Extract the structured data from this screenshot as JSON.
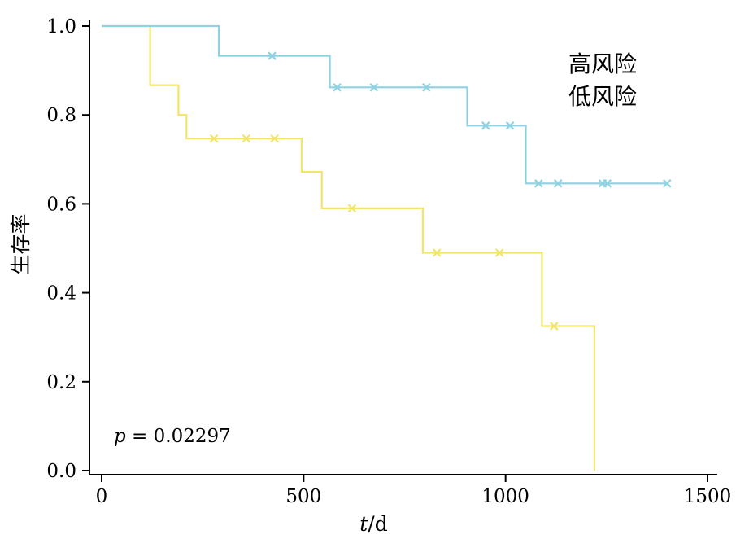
{
  "chart_data": {
    "type": "line",
    "variant": "kaplan-meier-step",
    "title": "",
    "xlabel": "t/d",
    "xlabel_italic_part": "t",
    "xlabel_regular_part": "/d",
    "ylabel": "生存率",
    "xlim": [
      0,
      1500
    ],
    "ylim": [
      0,
      1
    ],
    "x_tick_values": [
      0,
      500,
      1000,
      1500
    ],
    "x_tick_labels": [
      "0",
      "500",
      "1000",
      "1500"
    ],
    "y_tick_values": [
      0,
      0.2,
      0.4,
      0.6,
      0.8,
      1.0
    ],
    "y_tick_labels": [
      "0.0",
      "0.2",
      "0.4",
      "0.6",
      "0.8",
      "1.0"
    ],
    "grid": false,
    "legend_position": "top-right",
    "annotation": {
      "italic": "p",
      "rest": " = 0.02297",
      "full": "p = 0.02297"
    },
    "series": [
      {
        "name": "高风险",
        "color": "#F1E56B",
        "label_color": "#F0D43A",
        "steps": [
          [
            0,
            1.0
          ],
          [
            120,
            0.867
          ],
          [
            190,
            0.8
          ],
          [
            210,
            0.747
          ],
          [
            495,
            0.672
          ],
          [
            545,
            0.59
          ],
          [
            795,
            0.49
          ],
          [
            1090,
            0.325
          ],
          [
            1220,
            0.0
          ]
        ],
        "end": 1220,
        "censor": [
          [
            278,
            0.747
          ],
          [
            358,
            0.747
          ],
          [
            428,
            0.747
          ],
          [
            620,
            0.59
          ],
          [
            830,
            0.49
          ],
          [
            985,
            0.49
          ],
          [
            1120,
            0.325
          ]
        ]
      },
      {
        "name": "低风险",
        "color": "#8FD2E2",
        "label_color": "#74CCDF",
        "steps": [
          [
            0,
            1.0
          ],
          [
            290,
            0.933
          ],
          [
            565,
            0.862
          ],
          [
            905,
            0.776
          ],
          [
            1050,
            0.646
          ]
        ],
        "end": 1400,
        "censor": [
          [
            422,
            0.933
          ],
          [
            583,
            0.862
          ],
          [
            674,
            0.862
          ],
          [
            804,
            0.862
          ],
          [
            951,
            0.776
          ],
          [
            1011,
            0.776
          ],
          [
            1082,
            0.646
          ],
          [
            1130,
            0.646
          ],
          [
            1240,
            0.646
          ],
          [
            1252,
            0.646
          ],
          [
            1400,
            0.646
          ]
        ]
      }
    ]
  }
}
